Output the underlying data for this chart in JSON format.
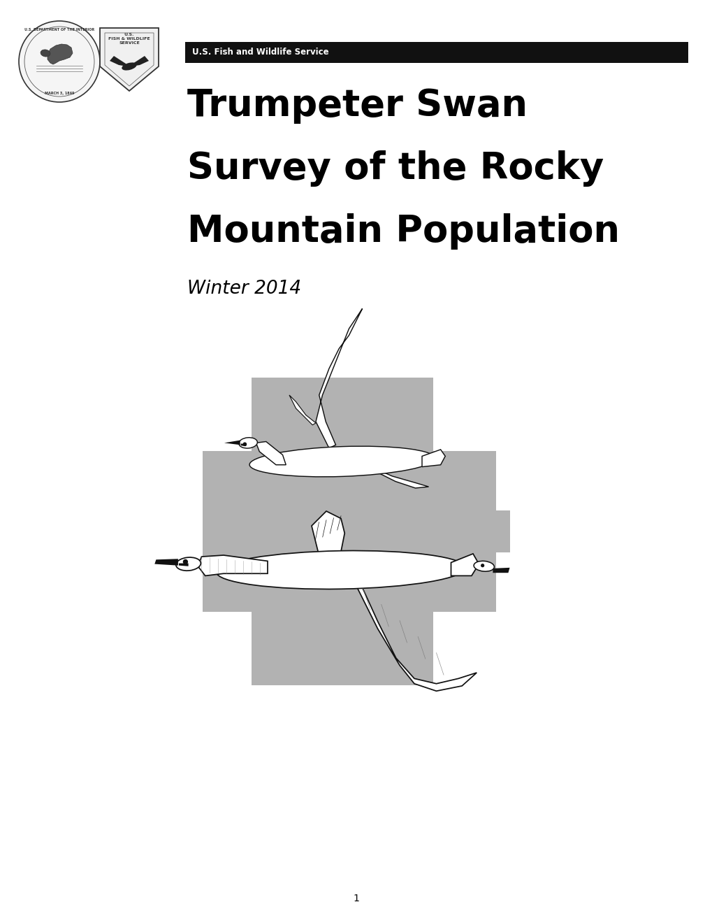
{
  "page_bg": "#ffffff",
  "header_bar_color": "#111111",
  "header_bar_text": "U.S. Fish and Wildlife Service",
  "header_bar_text_color": "#ffffff",
  "header_bar_text_size": 8.5,
  "title_line1": "Trumpeter Swan",
  "title_line2": "Survey of the Rocky",
  "title_line3": "Mountain Population",
  "title_color": "#000000",
  "title_fontsize": 38,
  "subtitle": "Winter 2014",
  "subtitle_color": "#000000",
  "subtitle_fontsize": 19,
  "subtitle_style": "italic",
  "page_number": "1",
  "page_number_color": "#000000",
  "page_number_size": 10,
  "gray_color": "#b2b2b2",
  "swan_white": "#ffffff",
  "swan_gray": "#cccccc",
  "swan_black": "#111111"
}
